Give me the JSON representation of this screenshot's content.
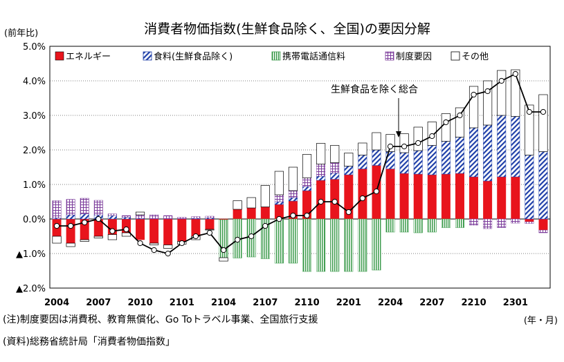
{
  "chart_data": {
    "type": "bar",
    "title": "消費者物価指数(生鮮食品除く、全国)の要因分解",
    "ylabel": "(前年比)",
    "xunit": "(年・月)",
    "ylim": [
      -2.0,
      5.0
    ],
    "y_ticks": [
      {
        "value": 5.0,
        "label": "5.0%"
      },
      {
        "value": 4.0,
        "label": "4.0%"
      },
      {
        "value": 3.0,
        "label": "3.0%"
      },
      {
        "value": 2.0,
        "label": "2.0%"
      },
      {
        "value": 1.0,
        "label": "1.0%"
      },
      {
        "value": 0.0,
        "label": "0.0%"
      },
      {
        "value": -1.0,
        "label": "▲1.0%"
      },
      {
        "value": -2.0,
        "label": "▲2.0%"
      }
    ],
    "x_ticks": [
      {
        "index": 0,
        "label": "2004"
      },
      {
        "index": 3,
        "label": "2007"
      },
      {
        "index": 6,
        "label": "2010"
      },
      {
        "index": 9,
        "label": "2101"
      },
      {
        "index": 12,
        "label": "2104"
      },
      {
        "index": 15,
        "label": "2107"
      },
      {
        "index": 18,
        "label": "2110"
      },
      {
        "index": 21,
        "label": "2201"
      },
      {
        "index": 24,
        "label": "2204"
      },
      {
        "index": 27,
        "label": "2207"
      },
      {
        "index": 30,
        "label": "2210"
      },
      {
        "index": 33,
        "label": "2301"
      }
    ],
    "categories": [
      "2004",
      "2005",
      "2006",
      "2007",
      "2008",
      "2009",
      "2010",
      "2011",
      "2012",
      "2101",
      "2102",
      "2103",
      "2104",
      "2105",
      "2106",
      "2107",
      "2108",
      "2109",
      "2110",
      "2111",
      "2112",
      "2201",
      "2202",
      "2203",
      "2204",
      "2205",
      "2206",
      "2207",
      "2208",
      "2209",
      "2210",
      "2211",
      "2212",
      "2301",
      "2302",
      "2303"
    ],
    "series": [
      {
        "name": "エネルギー",
        "color": "#e8141c",
        "pattern": "solid",
        "values": [
          -0.5,
          -0.7,
          -0.6,
          -0.5,
          -0.45,
          -0.4,
          -0.6,
          -0.7,
          -0.75,
          -0.65,
          -0.5,
          -0.3,
          -0.02,
          0.28,
          0.32,
          0.35,
          0.42,
          0.52,
          0.82,
          1.12,
          1.15,
          1.28,
          1.45,
          1.55,
          1.45,
          1.32,
          1.3,
          1.28,
          1.3,
          1.32,
          1.22,
          1.1,
          1.22,
          1.22,
          -0.08,
          -0.32
        ]
      },
      {
        "name": "食料(生鮮食品除く)",
        "color": "#1f3fa8",
        "pattern": "diagonal",
        "values": [
          0.03,
          0.12,
          0.15,
          0.12,
          0.1,
          0.05,
          0.02,
          0.0,
          0.0,
          0.0,
          0.02,
          0.03,
          0.0,
          0.0,
          0.0,
          0.0,
          0.08,
          0.1,
          0.12,
          0.12,
          0.18,
          0.25,
          0.4,
          0.45,
          0.5,
          0.6,
          0.68,
          0.85,
          0.95,
          1.05,
          1.42,
          1.62,
          1.78,
          1.75,
          1.85,
          1.95
        ]
      },
      {
        "name": "携帯電話通信料",
        "color": "#3a9a4a",
        "pattern": "vertical",
        "values": [
          0.0,
          0.0,
          0.0,
          0.0,
          0.0,
          0.0,
          0.0,
          0.0,
          0.0,
          0.0,
          0.0,
          0.0,
          -1.1,
          -1.13,
          -1.1,
          -1.15,
          -1.28,
          -1.28,
          -1.52,
          -1.52,
          -1.52,
          -1.52,
          -1.52,
          -1.48,
          -0.38,
          -0.38,
          -0.4,
          -0.38,
          -0.25,
          -0.25,
          0.0,
          0.0,
          0.0,
          0.0,
          0.0,
          0.0
        ]
      },
      {
        "name": "制度要因",
        "color": "#7a3a9a",
        "pattern": "grid",
        "values": [
          0.5,
          0.45,
          0.45,
          0.42,
          0.05,
          0.05,
          0.1,
          0.12,
          0.1,
          0.05,
          0.05,
          0.05,
          0.0,
          0.0,
          0.0,
          0.0,
          0.2,
          0.2,
          0.25,
          0.35,
          0.3,
          0.0,
          0.0,
          0.0,
          0.0,
          0.0,
          0.0,
          0.0,
          0.0,
          0.0,
          -0.18,
          -0.28,
          -0.25,
          -0.12,
          -0.05,
          -0.08
        ]
      },
      {
        "name": "その他",
        "color": "#ffffff",
        "pattern": "empty",
        "values": [
          -0.2,
          -0.1,
          -0.05,
          -0.05,
          -0.15,
          -0.1,
          0.08,
          -0.05,
          -0.1,
          -0.08,
          -0.1,
          -0.02,
          -0.1,
          0.25,
          0.3,
          0.62,
          0.68,
          0.68,
          0.68,
          0.6,
          0.5,
          0.38,
          0.35,
          0.5,
          0.5,
          0.55,
          0.68,
          0.68,
          0.8,
          0.85,
          1.2,
          1.28,
          1.3,
          1.35,
          1.45,
          1.65
        ]
      }
    ],
    "line": {
      "name": "生鮮食品を除く総合",
      "values": [
        -0.2,
        -0.2,
        -0.1,
        0.0,
        -0.35,
        -0.3,
        -0.7,
        -0.9,
        -1.0,
        -0.7,
        -0.5,
        -0.4,
        -0.9,
        -0.6,
        -0.5,
        -0.2,
        0.0,
        0.1,
        0.1,
        0.5,
        0.5,
        0.2,
        0.6,
        0.8,
        2.1,
        2.1,
        2.2,
        2.4,
        2.8,
        3.0,
        3.6,
        3.7,
        4.0,
        4.2,
        3.1,
        3.1
      ]
    },
    "annotation": "生鮮食品を除く総合",
    "legend_position": "top-left",
    "grid": true
  },
  "notes": [
    "(注)制度要因は消費税、教育無償化、Go Toトラベル事業、全国旅行支援",
    "(資料)総務省統計局「消費者物価指数」"
  ]
}
